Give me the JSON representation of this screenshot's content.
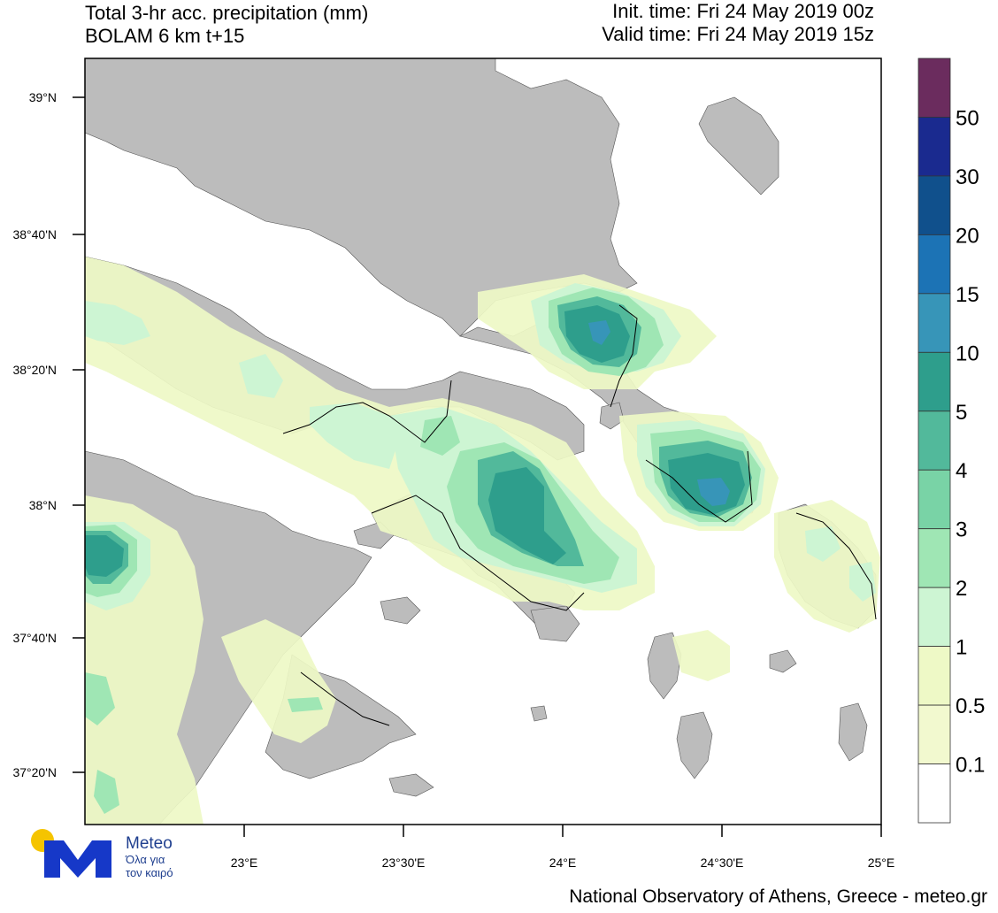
{
  "header": {
    "title_line1": "Total 3-hr acc. precipitation (mm)",
    "title_line2": "BOLAM 6 km t+15",
    "init_time": "Init. time: Fri 24 May 2019 00z",
    "valid_time": "Valid time: Fri 24 May 2019 15z"
  },
  "axes": {
    "lat_labels": [
      "39°N",
      "38°40'N",
      "38°20'N",
      "38°N",
      "37°40'N",
      "37°20'N"
    ],
    "lon_labels": [
      "23°E",
      "23°30'E",
      "24°E",
      "24°30'E",
      "25°E"
    ]
  },
  "legend": {
    "levels": [
      "50",
      "30",
      "20",
      "15",
      "10",
      "5",
      "4",
      "3",
      "2",
      "1",
      "0.5",
      "0.1"
    ],
    "colors": [
      "#6b2c5e",
      "#1a2a8f",
      "#10508c",
      "#1c73b5",
      "#3795b8",
      "#2e9e8c",
      "#52b99b",
      "#79d3a6",
      "#9fe6b4",
      "#cdf5d3",
      "#eef9c6",
      "#f2f9cf",
      "#ffffff"
    ]
  },
  "colors": {
    "land": "#bcbcbc",
    "sea": "#ffffff",
    "border": "#000000"
  },
  "logo": {
    "name": "Meteo",
    "tagline_line1": "Όλα για",
    "tagline_line2": "τον καιρό"
  },
  "footer": "National Observatory of Athens, Greece - meteo.gr"
}
